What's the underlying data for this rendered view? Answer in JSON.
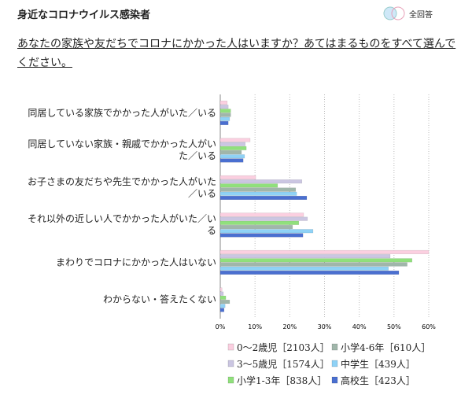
{
  "header": {
    "title": "身近なコロナウイルス感染者",
    "badge": "全回答"
  },
  "question": "あなたの家族や友だちでコロナにかかった人はいますか？あてはまるものをすべて選んでください。",
  "chart_data": {
    "type": "hbar",
    "categories": [
      "同居している家族でかかった人がいた／いる",
      "同居していない家族・親戚でかかった人がいた／いる",
      "お子さまの友だちや先生でかかった人がいた／いる",
      "それ以外の近しい人でかかった人がいた／いる",
      "まわりでコロナにかかった人はいない",
      "わからない・答えたくない"
    ],
    "series": [
      {
        "name": "0～2歳児［2103人］",
        "color": "#fbcfe0",
        "values": [
          2.0,
          8.6,
          10.2,
          24.0,
          60.0,
          0.5
        ]
      },
      {
        "name": "3～5歳児［1574人］",
        "color": "#cbc6e2",
        "values": [
          2.3,
          7.2,
          23.5,
          25.1,
          48.9,
          0.9
        ]
      },
      {
        "name": "小学1-3年［838人］",
        "color": "#90e07c",
        "values": [
          3.0,
          7.5,
          16.5,
          22.6,
          55.2,
          1.6
        ]
      },
      {
        "name": "小学4-6年［610人］",
        "color": "#a0b6aa",
        "values": [
          3.0,
          6.1,
          21.7,
          20.8,
          53.8,
          2.7
        ]
      },
      {
        "name": "中学生［439人］",
        "color": "#8fd2f6",
        "values": [
          2.7,
          7.0,
          22.0,
          26.7,
          48.4,
          1.4
        ]
      },
      {
        "name": "高校生［423人］",
        "color": "#4a6fd0",
        "values": [
          2.3,
          6.6,
          24.9,
          23.8,
          51.4,
          1.1
        ]
      }
    ],
    "xlim": [
      0,
      60
    ],
    "xticks": [
      {
        "value": 0,
        "label": "0%"
      },
      {
        "value": 10,
        "label": "10%"
      },
      {
        "value": 20,
        "label": "20%"
      },
      {
        "value": 30,
        "label": "30%"
      },
      {
        "value": 40,
        "label": "40%"
      },
      {
        "value": 50,
        "label": "50%"
      },
      {
        "value": 60,
        "label": "60%"
      }
    ],
    "grid": true
  }
}
